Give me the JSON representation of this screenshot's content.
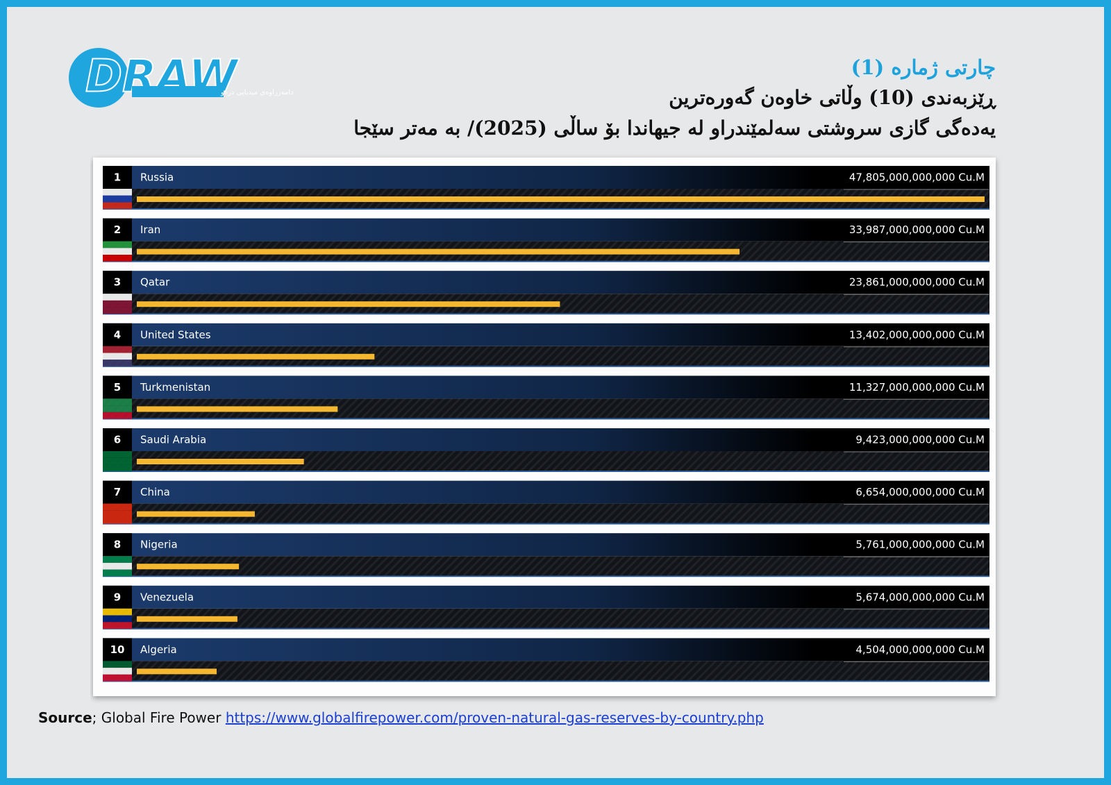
{
  "header": {
    "label": "چارتی ژمارە (1)",
    "line1": "ڕێزبەندی (10) وڵاتی خاوەن گەورەترین",
    "line2": "یەدەگی گازی سروشتی سەلمێندراو لە جیهاندا بۆ ساڵی (2025)/  بە مەتر سێجا"
  },
  "logo": {
    "text": "DRAW",
    "subtitle": "دامەزراوەی میدیایی درەو"
  },
  "source": {
    "label": "Source",
    "text": "; Global Fire Power ",
    "url": "https://www.globalfirepower.com/proven-natural-gas-reserves-by-country.php"
  },
  "chart_data": {
    "type": "bar",
    "orientation": "horizontal",
    "ranks": [
      1,
      2,
      3,
      4,
      5,
      6,
      7,
      8,
      9,
      10
    ],
    "categories": [
      "Russia",
      "Iran",
      "Qatar",
      "United States",
      "Turkmenistan",
      "Saudi Arabia",
      "China",
      "Nigeria",
      "Venezuela",
      "Algeria"
    ],
    "values": [
      47805000000000,
      33987000000000,
      23861000000000,
      13402000000000,
      11327000000000,
      9423000000000,
      6654000000000,
      5761000000000,
      5674000000000,
      4504000000000
    ],
    "value_labels": [
      "47,805,000,000,000 Cu.M",
      "33,987,000,000,000 Cu.M",
      "23,861,000,000,000 Cu.M",
      "13,402,000,000,000 Cu.M",
      "11,327,000,000,000 Cu.M",
      "9,423,000,000,000 Cu.M",
      "6,654,000,000,000 Cu.M",
      "5,761,000,000,000 Cu.M",
      "5,674,000,000,000 Cu.M",
      "4,504,000,000,000 Cu.M"
    ],
    "color": "#f4b72f",
    "xlim": [
      0,
      50000000000000
    ]
  }
}
